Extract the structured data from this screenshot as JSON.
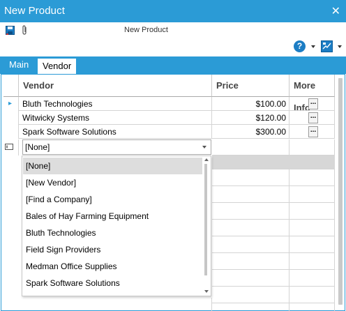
{
  "window": {
    "title": "New Product",
    "close_glyph": "✕"
  },
  "toolbar": {
    "doc_title": "New Product",
    "save_icon": "save-icon",
    "attach_icon": "paperclip-icon"
  },
  "toolbar2": {
    "help_glyph": "?",
    "help_icon": "help-icon",
    "layout_icon": "layout-icon"
  },
  "tabs": [
    {
      "label": "Main",
      "active": false
    },
    {
      "label": "Vendor",
      "active": true
    }
  ],
  "grid": {
    "columns": [
      "Vendor",
      "Price",
      "More Info"
    ],
    "rows": [
      {
        "vendor": "Bluth Technologies",
        "price": "$100.00",
        "more_info": "..."
      },
      {
        "vendor": "Witwicky Systems",
        "price": "$120.00",
        "more_info": "..."
      },
      {
        "vendor": "Spark Software Solutions",
        "price": "$300.00",
        "more_info": "..."
      }
    ],
    "current_row_marker": "▸"
  },
  "combo": {
    "value": "[None]",
    "options": [
      "[None]",
      "[New Vendor]",
      "[Find a Company]",
      "Bales of Hay Farming Equipment",
      "Bluth Technologies",
      "Field Sign Providers",
      "Medman Office Supplies",
      "Spark Software Solutions"
    ],
    "selected_index": 0
  },
  "colors": {
    "accent": "#2b9bd6",
    "selected_row": "#dddddd",
    "grid_line": "#d4d4d4"
  }
}
